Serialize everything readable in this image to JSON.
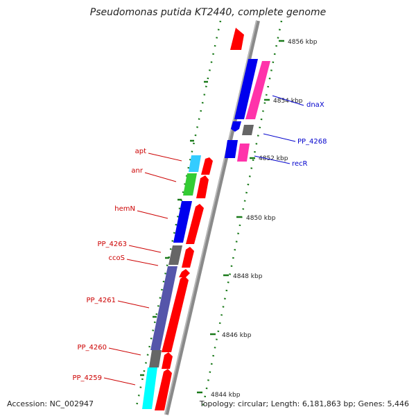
{
  "title": "Pseudomonas putida KT2440, complete genome",
  "footer": {
    "accession": "Accession: NC_002947",
    "topology": "Topology: circular; Length: 6,181,863 bp; Genes: 5,446"
  },
  "ticks": [
    "4856 kbp",
    "4854 kbp",
    "4852 kbp",
    "4850 kbp",
    "4848 kbp",
    "4846 kbp",
    "4844 kbp"
  ],
  "left_labels": [
    "apt",
    "anr",
    "hemN",
    "PP_4263",
    "ccoS",
    "PP_4261",
    "PP_4260",
    "PP_4259"
  ],
  "right_labels": [
    "dnaX",
    "PP_4268",
    "recR"
  ],
  "colors": {
    "left_label": "#cc0000",
    "right_label": "#0000cc",
    "tick": "#1a7a1a",
    "red": "#ff0000",
    "blue": "#0000ee",
    "magenta": "#ff33aa",
    "gray": "#666666",
    "cyan": "#33ccff",
    "green": "#33cc33",
    "slate": "#5555aa",
    "aqua": "#00ffff"
  }
}
